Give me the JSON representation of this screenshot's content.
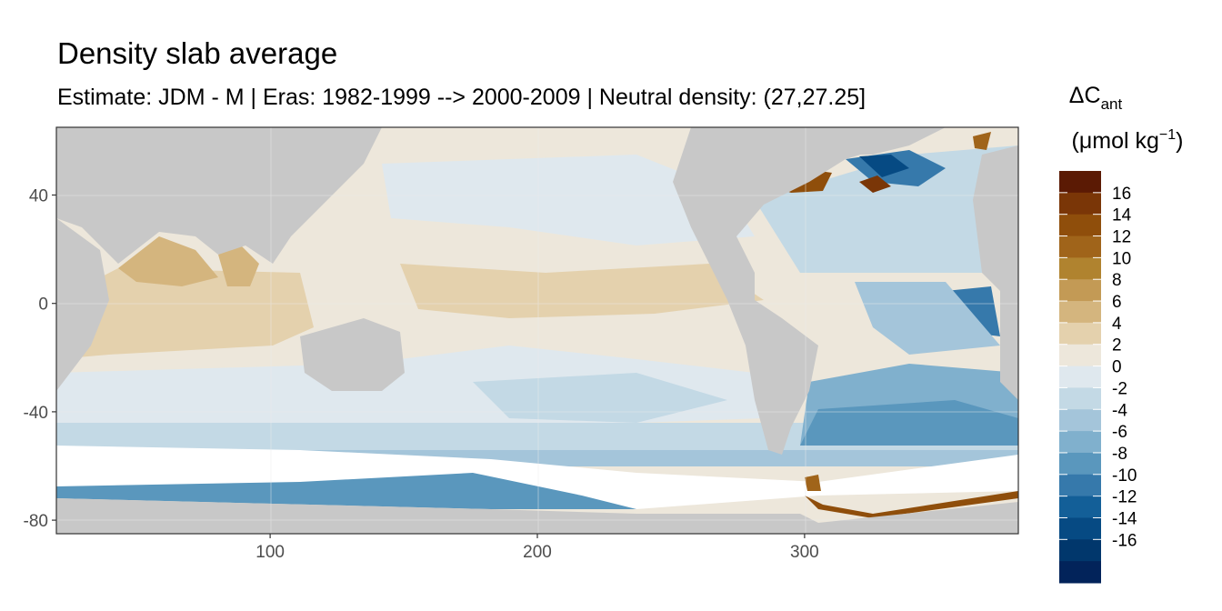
{
  "chart_data": {
    "type": "heatmap",
    "title": "Density slab average",
    "subtitle": "Estimate: JDM - M | Eras: 1982-1999 --> 2000-2009 | Neutral density: (27,27.25]",
    "xlim": [
      20,
      380
    ],
    "ylim": [
      -85,
      65
    ],
    "x_ticks": [
      100,
      200,
      300
    ],
    "y_ticks": [
      40,
      0,
      -40,
      -80
    ],
    "grid": true,
    "land_color": "#c8c8c8",
    "no_data_color": "#ffffff",
    "legend": {
      "position": "right",
      "title_main": "ΔC",
      "title_sub": "ant",
      "unit_prefix": "(μmol kg",
      "unit_exp": "−1",
      "unit_suffix": ")",
      "labels": [
        "16",
        "14",
        "12",
        "10",
        "8",
        "6",
        "4",
        "2",
        "0",
        "-2",
        "-4",
        "-6",
        "-8",
        "-10",
        "-12",
        "-14",
        "-16"
      ],
      "colors": [
        "#5b1a04",
        "#7a3607",
        "#8f4e0b",
        "#a0641a",
        "#b0832f",
        "#c39a55",
        "#d4b57e",
        "#e4d1ad",
        "#ede7db",
        "#dfe8ee",
        "#c3d9e5",
        "#a4c5da",
        "#80b0cd",
        "#5a97bd",
        "#3679ab",
        "#135f98",
        "#064a83",
        "#01376c",
        "#02235a"
      ]
    },
    "regions": [
      {
        "id": "north-pacific",
        "value": 1.5
      },
      {
        "id": "tropical-pacific",
        "value": 3.5
      },
      {
        "id": "indian-ocean",
        "value": 3.5
      },
      {
        "id": "arabian-sea",
        "value": 5.5
      },
      {
        "id": "south-pacific",
        "value": -1
      },
      {
        "id": "southern-ocean-band",
        "value": -4.5
      },
      {
        "id": "antarctic-coastal",
        "value": -6
      },
      {
        "id": "weddell-coastal",
        "value": 13
      },
      {
        "id": "north-atlantic-west",
        "value": -9
      },
      {
        "id": "labrador-hudson",
        "value": 15
      },
      {
        "id": "tropical-atlantic-east",
        "value": -7
      },
      {
        "id": "south-atlantic",
        "value": -5.5
      }
    ]
  }
}
